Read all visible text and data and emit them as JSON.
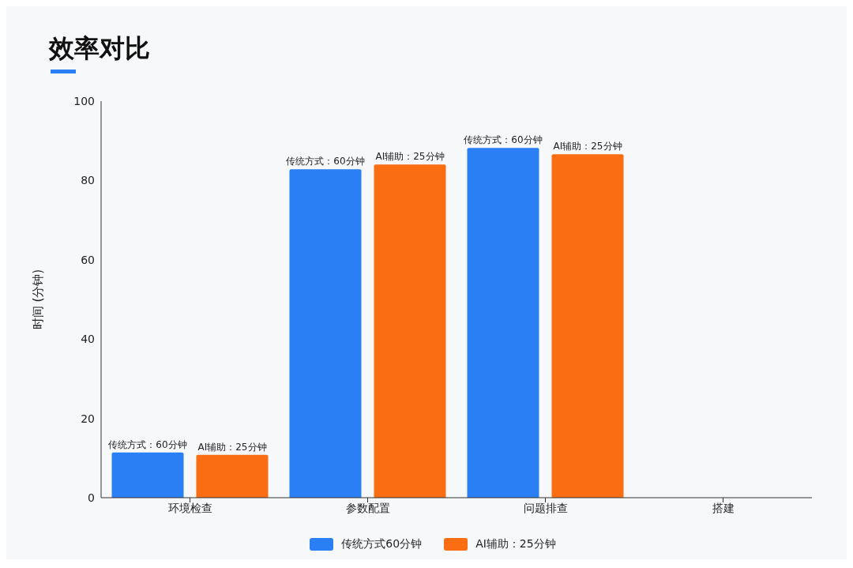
{
  "chart_data": {
    "type": "bar",
    "title": "效率对比",
    "ylabel": "时间 (分钟)",
    "categories": [
      "环境检查",
      "参数配置",
      "问题排查",
      "搭建"
    ],
    "series": [
      {
        "name": "传统方式60分钟",
        "color": "#2a7ff5",
        "values": [
          11.4,
          82.8,
          88.2,
          null
        ]
      },
      {
        "name": "AI辅助：25分钟",
        "color": "#fb6d12",
        "values": [
          10.8,
          84.0,
          86.6,
          null
        ]
      }
    ],
    "annotations": [
      "传统方式：60分钟",
      "AI辅助：25分钟",
      "传统方式：60分钟",
      "AI辅助：25分钟",
      "传统方式：60分钟",
      "AI辅助：25分钟"
    ],
    "ylim": [
      0,
      100
    ],
    "yticks": [
      0,
      20,
      40,
      60,
      80,
      100
    ],
    "grid": false,
    "legend": "bottom"
  }
}
